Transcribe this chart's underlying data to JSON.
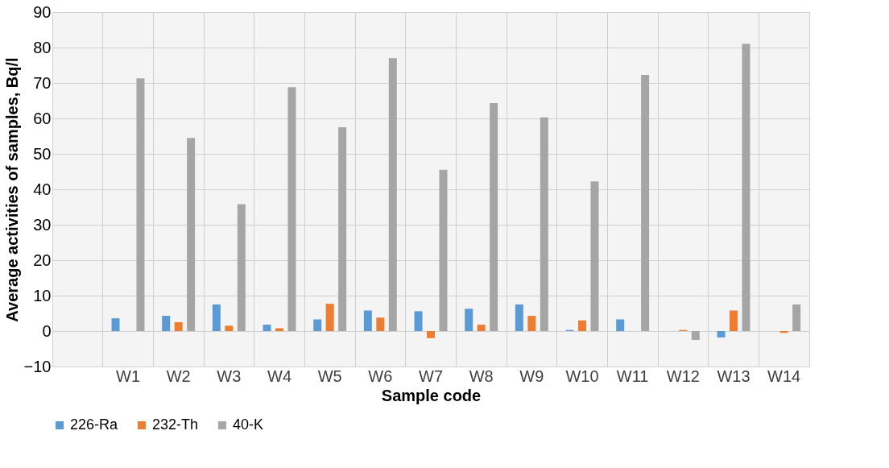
{
  "chart_data": {
    "type": "bar",
    "xlabel": "Sample code",
    "ylabel": "Average activities of samples, Bq/l",
    "categories": [
      null,
      "W1",
      "W2",
      "W3",
      "W4",
      "W5",
      "W6",
      "W7",
      "W8",
      "W9",
      "W10",
      "W11",
      "W12",
      "W13",
      "W14"
    ],
    "series": [
      {
        "name": "226-Ra",
        "color": "#5b9bd5",
        "values": [
          null,
          3.6,
          4.3,
          7.5,
          1.8,
          3.3,
          5.8,
          5.6,
          6.3,
          7.5,
          0.3,
          3.3,
          null,
          -1.8,
          null
        ]
      },
      {
        "name": "232-Th",
        "color": "#ed7d31",
        "values": [
          null,
          null,
          2.5,
          1.5,
          0.8,
          7.7,
          3.8,
          -2.0,
          1.8,
          4.3,
          3.0,
          null,
          0.3,
          5.8,
          -0.5
        ]
      },
      {
        "name": "40-K",
        "color": "#a5a5a5",
        "values": [
          null,
          71.3,
          54.5,
          35.8,
          68.8,
          57.5,
          77.0,
          45.5,
          64.3,
          60.3,
          42.2,
          72.3,
          -2.5,
          81.0,
          7.5
        ]
      }
    ],
    "ylim": [
      -10,
      90
    ],
    "yticks": [
      -10,
      0,
      10,
      20,
      30,
      40,
      50,
      60,
      70,
      80,
      90
    ],
    "grid": true,
    "legend": "bottom"
  }
}
